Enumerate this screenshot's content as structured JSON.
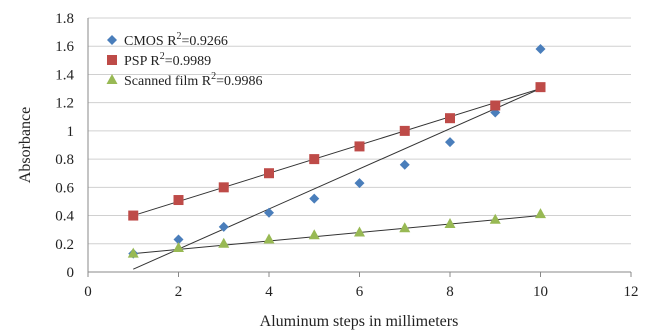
{
  "chart_data": {
    "type": "scatter",
    "title": "",
    "xlabel": "Aluminum steps in millimeters",
    "ylabel": "Absorbance",
    "xlim": [
      0,
      12
    ],
    "ylim": [
      0,
      1.8
    ],
    "x_ticks": [
      0,
      2,
      4,
      6,
      8,
      10,
      12
    ],
    "y_ticks": [
      0,
      0.2,
      0.4,
      0.6,
      0.8,
      1,
      1.2,
      1.4,
      1.6,
      1.8
    ],
    "grid": "horizontal",
    "legend_position": "top-left",
    "series": [
      {
        "name": "CMOS",
        "r2_label": "R",
        "r2_sup": "2",
        "r2_value": "=0.9266",
        "marker": "diamond",
        "color": "#4a7ebb",
        "x": [
          1,
          2,
          3,
          4,
          5,
          6,
          7,
          8,
          9,
          10
        ],
        "y": [
          0.13,
          0.23,
          0.32,
          0.42,
          0.52,
          0.63,
          0.76,
          0.92,
          1.13,
          1.58
        ],
        "trendline": {
          "x": [
            1,
            10
          ],
          "y": [
            0.02,
            1.3
          ]
        }
      },
      {
        "name": "PSP",
        "r2_label": "R",
        "r2_sup": "2",
        "r2_value": "=0.9989",
        "marker": "square",
        "color": "#be4b48",
        "x": [
          1,
          2,
          3,
          4,
          5,
          6,
          7,
          8,
          9,
          10
        ],
        "y": [
          0.4,
          0.51,
          0.6,
          0.7,
          0.8,
          0.89,
          1.0,
          1.09,
          1.18,
          1.31
        ],
        "trendline": {
          "x": [
            1,
            10
          ],
          "y": [
            0.4,
            1.3
          ]
        }
      },
      {
        "name": "Scanned film",
        "r2_label": "R",
        "r2_sup": "2",
        "r2_value": "=0.9986",
        "marker": "triangle",
        "color": "#98b954",
        "x": [
          1,
          2,
          3,
          4,
          5,
          6,
          7,
          8,
          9,
          10
        ],
        "y": [
          0.13,
          0.17,
          0.2,
          0.23,
          0.26,
          0.28,
          0.31,
          0.34,
          0.37,
          0.41
        ],
        "trendline": {
          "x": [
            1,
            10
          ],
          "y": [
            0.13,
            0.4
          ]
        }
      }
    ]
  }
}
